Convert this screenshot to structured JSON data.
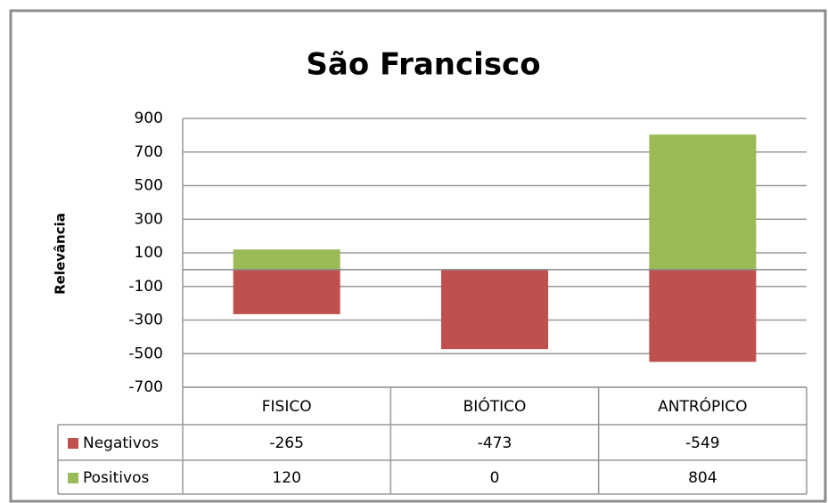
{
  "chart_data": {
    "type": "stacked_bar",
    "title": "São Francisco",
    "y_label": "Relevância",
    "categories": [
      "FISICO",
      "BIÓTICO",
      "ANTRÓPICO"
    ],
    "series": [
      {
        "name": "Negativos",
        "color": "#c0504d",
        "values": [
          -265,
          -473,
          -549
        ]
      },
      {
        "name": "Positivos",
        "color": "#9bbb59",
        "values": [
          120,
          0,
          804
        ]
      }
    ],
    "ylim": [
      -700,
      900
    ],
    "yticks": [
      -700,
      -500,
      -300,
      -100,
      100,
      300,
      500,
      700,
      900
    ],
    "grid": true,
    "data_table": true
  }
}
